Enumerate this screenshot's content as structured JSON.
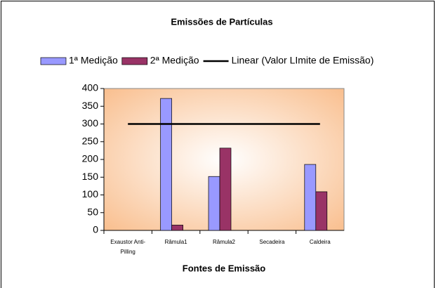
{
  "chart_data": {
    "type": "bar",
    "title": "Emissões de Partículas",
    "x_label": "Fontes de Emissão",
    "categories": [
      "Exaustor Anti-Pilling",
      "Râmula1",
      "Râmula2",
      "Secadeira",
      "Caldeira"
    ],
    "series": [
      {
        "name": "1ª Medição",
        "color": "#9999ff",
        "values": [
          null,
          372,
          152,
          null,
          186
        ]
      },
      {
        "name": "2ª Medição",
        "color": "#993366",
        "values": [
          null,
          15,
          232,
          null,
          109
        ]
      },
      {
        "name": "Linear (Valor LImite de Emissão)",
        "color": "#000000",
        "type": "line",
        "values": [
          300,
          300,
          300,
          300,
          300
        ]
      }
    ],
    "ylim": [
      0,
      400
    ],
    "yticks": [
      0,
      50,
      100,
      150,
      200,
      250,
      300,
      350,
      400
    ],
    "legend": "top"
  }
}
